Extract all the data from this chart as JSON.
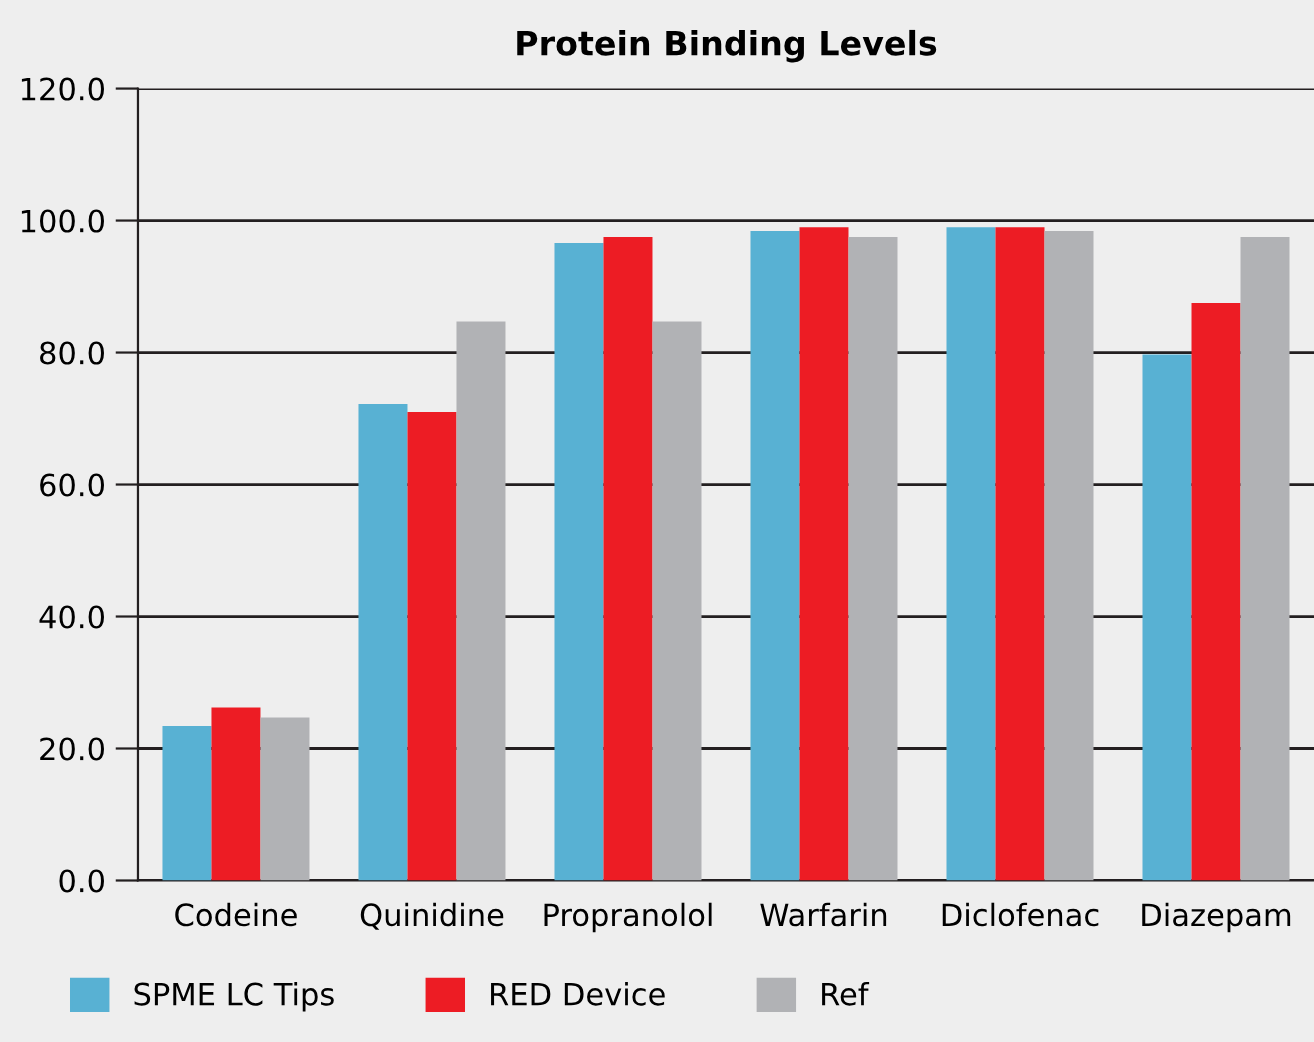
{
  "chart_data": {
    "type": "bar",
    "title": "Protein Binding Levels",
    "categories": [
      "Codeine",
      "Quinidine",
      "Propranolol",
      "Warfarin",
      "Diclofenac",
      "Diazepam"
    ],
    "series": [
      {
        "name": "SPME LC Tips",
        "color": "#58b1d3",
        "values": [
          23.4,
          72.2,
          96.6,
          98.4,
          99.0,
          79.7
        ]
      },
      {
        "name": "RED Device",
        "color": "#ed1c24",
        "values": [
          26.2,
          71.0,
          97.5,
          99.0,
          99.0,
          87.5
        ]
      },
      {
        "name": "Ref",
        "color": "#b1b2b5",
        "values": [
          24.7,
          84.7,
          84.7,
          97.5,
          98.4,
          97.5
        ]
      }
    ],
    "ylim": [
      0,
      120
    ],
    "yticks": [
      {
        "value": 0,
        "label": "0.0"
      },
      {
        "value": 20,
        "label": "20.0"
      },
      {
        "value": 40,
        "label": "40.0"
      },
      {
        "value": 60,
        "label": "60.0"
      },
      {
        "value": 80,
        "label": "80.0"
      },
      {
        "value": 100,
        "label": "100.0"
      },
      {
        "value": 120,
        "label": "120.0"
      }
    ],
    "grid": "y",
    "legend": "bottom"
  }
}
